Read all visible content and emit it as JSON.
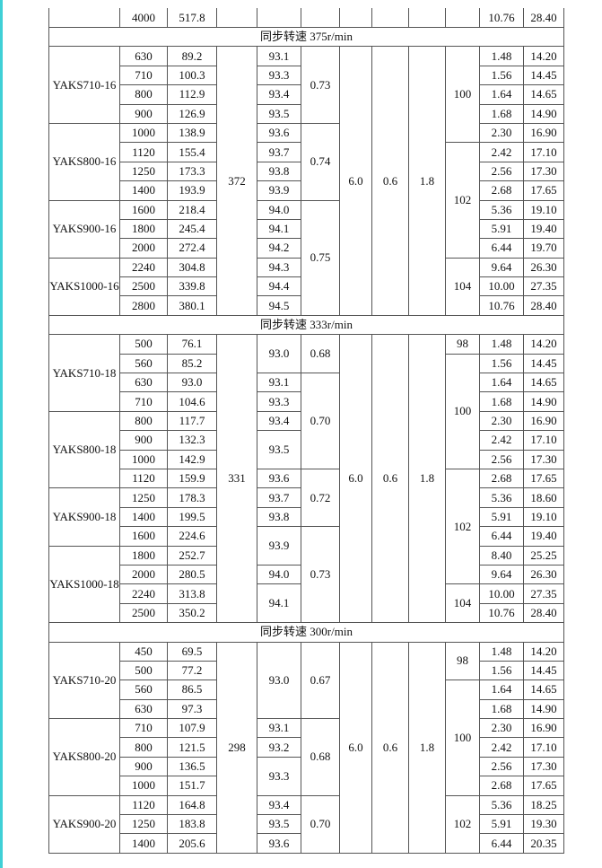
{
  "top_row": [
    "",
    "4000",
    "517.8",
    "",
    "",
    "",
    "",
    "",
    "",
    "",
    "10.76",
    "28.40"
  ],
  "sections": [
    {
      "title": "同步转速  375r/min",
      "models": [
        {
          "v": "YAKS710-16",
          "n": 4
        },
        {
          "v": "YAKS800-16",
          "n": 4
        },
        {
          "v": "YAKS900-16",
          "n": 3
        },
        {
          "v": "YAKS1000-16",
          "n": 3
        }
      ],
      "power": [
        "630",
        "710",
        "800",
        "900",
        "1000",
        "1120",
        "1250",
        "1400",
        "1600",
        "1800",
        "2000",
        "2240",
        "2500",
        "2800"
      ],
      "current": [
        "89.2",
        "100.3",
        "112.9",
        "126.9",
        "138.9",
        "155.4",
        "173.3",
        "193.9",
        "218.4",
        "245.4",
        "272.4",
        "304.8",
        "339.8",
        "380.1"
      ],
      "speed": "372",
      "efficiency": [
        {
          "v": "93.1",
          "n": 1
        },
        {
          "v": "93.3",
          "n": 1
        },
        {
          "v": "93.4",
          "n": 1
        },
        {
          "v": "93.5",
          "n": 1
        },
        {
          "v": "93.6",
          "n": 1
        },
        {
          "v": "93.7",
          "n": 1
        },
        {
          "v": "93.8",
          "n": 1
        },
        {
          "v": "93.9",
          "n": 1
        },
        {
          "v": "94.0",
          "n": 1
        },
        {
          "v": "94.1",
          "n": 1
        },
        {
          "v": "94.2",
          "n": 1
        },
        {
          "v": "94.3",
          "n": 1
        },
        {
          "v": "94.4",
          "n": 1
        },
        {
          "v": "94.5",
          "n": 1
        }
      ],
      "power_factor": [
        {
          "v": "0.73",
          "n": 4
        },
        {
          "v": "0.74",
          "n": 4
        },
        {
          "v": "0.75",
          "n": 6
        }
      ],
      "c7": "6.0",
      "c8": "0.6",
      "c9": "1.8",
      "noise": [
        {
          "v": "100",
          "n": 5
        },
        {
          "v": "102",
          "n": 6
        },
        {
          "v": "104",
          "n": 3
        }
      ],
      "c11": [
        "1.48",
        "1.56",
        "1.64",
        "1.68",
        "2.30",
        "2.42",
        "2.56",
        "2.68",
        "5.36",
        "5.91",
        "6.44",
        "9.64",
        "10.00",
        "10.76"
      ],
      "c12": [
        "14.20",
        "14.45",
        "14.65",
        "14.90",
        "16.90",
        "17.10",
        "17.30",
        "17.65",
        "19.10",
        "19.40",
        "19.70",
        "26.30",
        "27.35",
        "28.40"
      ]
    },
    {
      "title": "同步转速  333r/min",
      "models": [
        {
          "v": "YAKS710-18",
          "n": 4
        },
        {
          "v": "YAKS800-18",
          "n": 4
        },
        {
          "v": "YAKS900-18",
          "n": 3
        },
        {
          "v": "YAKS1000-18",
          "n": 4
        }
      ],
      "power": [
        "500",
        "560",
        "630",
        "710",
        "800",
        "900",
        "1000",
        "1120",
        "1250",
        "1400",
        "1600",
        "1800",
        "2000",
        "2240",
        "2500"
      ],
      "current": [
        "76.1",
        "85.2",
        "93.0",
        "104.6",
        "117.7",
        "132.3",
        "142.9",
        "159.9",
        "178.3",
        "199.5",
        "224.6",
        "252.7",
        "280.5",
        "313.8",
        "350.2"
      ],
      "speed": "331",
      "efficiency": [
        {
          "v": "93.0",
          "n": 2
        },
        {
          "v": "93.1",
          "n": 1
        },
        {
          "v": "93.3",
          "n": 1
        },
        {
          "v": "93.4",
          "n": 1
        },
        {
          "v": "93.5",
          "n": 2
        },
        {
          "v": "93.6",
          "n": 1
        },
        {
          "v": "93.7",
          "n": 1
        },
        {
          "v": "93.8",
          "n": 1
        },
        {
          "v": "93.9",
          "n": 2
        },
        {
          "v": "94.0",
          "n": 1
        },
        {
          "v": "94.1",
          "n": 2
        }
      ],
      "power_factor": [
        {
          "v": "0.68",
          "n": 2
        },
        {
          "v": "0.70",
          "n": 5
        },
        {
          "v": "0.72",
          "n": 3
        },
        {
          "v": "0.73",
          "n": 5
        }
      ],
      "c7": "6.0",
      "c8": "0.6",
      "c9": "1.8",
      "noise": [
        {
          "v": "98",
          "n": 1
        },
        {
          "v": "100",
          "n": 6
        },
        {
          "v": "102",
          "n": 6
        },
        {
          "v": "104",
          "n": 2
        }
      ],
      "c11": [
        "1.48",
        "1.56",
        "1.64",
        "1.68",
        "2.30",
        "2.42",
        "2.56",
        "2.68",
        "5.36",
        "5.91",
        "6.44",
        "8.40",
        "9.64",
        "10.00",
        "10.76"
      ],
      "c12": [
        "14.20",
        "14.45",
        "14.65",
        "14.90",
        "16.90",
        "17.10",
        "17.30",
        "17.65",
        "18.60",
        "19.10",
        "19.40",
        "25.25",
        "26.30",
        "27.35",
        "28.40"
      ]
    },
    {
      "title": "同步转速  300r/min",
      "models": [
        {
          "v": "YAKS710-20",
          "n": 4
        },
        {
          "v": "YAKS800-20",
          "n": 4
        },
        {
          "v": "YAKS900-20",
          "n": 3
        }
      ],
      "power": [
        "450",
        "500",
        "560",
        "630",
        "710",
        "800",
        "900",
        "1000",
        "1120",
        "1250",
        "1400"
      ],
      "current": [
        "69.5",
        "77.2",
        "86.5",
        "97.3",
        "107.9",
        "121.5",
        "136.5",
        "151.7",
        "164.8",
        "183.8",
        "205.6"
      ],
      "speed": "298",
      "efficiency": [
        {
          "v": "93.0",
          "n": 4
        },
        {
          "v": "93.1",
          "n": 1
        },
        {
          "v": "93.2",
          "n": 1
        },
        {
          "v": "93.3",
          "n": 2
        },
        {
          "v": "93.4",
          "n": 1
        },
        {
          "v": "93.5",
          "n": 1
        },
        {
          "v": "93.6",
          "n": 1
        }
      ],
      "power_factor": [
        {
          "v": "0.67",
          "n": 4
        },
        {
          "v": "0.68",
          "n": 4
        },
        {
          "v": "0.70",
          "n": 3
        }
      ],
      "c7": "6.0",
      "c8": "0.6",
      "c9": "1.8",
      "noise": [
        {
          "v": "98",
          "n": 2
        },
        {
          "v": "100",
          "n": 6
        },
        {
          "v": "102",
          "n": 3
        }
      ],
      "c11": [
        "1.48",
        "1.56",
        "1.64",
        "1.68",
        "2.30",
        "2.42",
        "2.56",
        "2.68",
        "5.36",
        "5.91",
        "6.44"
      ],
      "c12": [
        "14.20",
        "14.45",
        "14.65",
        "14.90",
        "16.90",
        "17.10",
        "17.30",
        "17.65",
        "18.25",
        "19.30",
        "20.35"
      ]
    }
  ]
}
